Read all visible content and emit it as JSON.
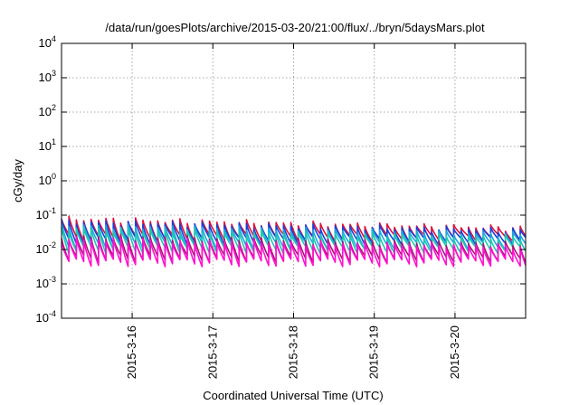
{
  "chart_data": {
    "type": "line",
    "title": "/data/run/goesPlots/archive/2015-03-20/21:00/flux/../bryn/5daysMars.plot",
    "xlabel": "Coordinated Universal Time (UTC)",
    "ylabel": "cGy/day",
    "yscale": "log",
    "ylim": [
      0.0001,
      10000
    ],
    "xlim": [
      "2015-03-15 03:00",
      "2015-03-20 21:00"
    ],
    "y_ticks": [
      {
        "base": "10",
        "exp": "-4"
      },
      {
        "base": "10",
        "exp": "-3"
      },
      {
        "base": "10",
        "exp": "-2"
      },
      {
        "base": "10",
        "exp": "-1"
      },
      {
        "base": "10",
        "exp": "0"
      },
      {
        "base": "10",
        "exp": "1"
      },
      {
        "base": "10",
        "exp": "2"
      },
      {
        "base": "10",
        "exp": "3"
      },
      {
        "base": "10",
        "exp": "4"
      }
    ],
    "x_ticks": [
      "2015-3-16",
      "2015-3-17",
      "2015-3-18",
      "2015-3-19",
      "2015-3-20"
    ],
    "grid": true,
    "sawtooth_period_hours": 2.2,
    "series": [
      {
        "color": "#e0103a",
        "peak_start": 0.078,
        "peak_end": 0.042,
        "trough": 0.022
      },
      {
        "color": "#1c3fd8",
        "peak_start": 0.065,
        "peak_end": 0.036,
        "trough": 0.018
      },
      {
        "color": "#18a8e0",
        "peak_start": 0.05,
        "peak_end": 0.028,
        "trough": 0.013
      },
      {
        "color": "#20c8b0",
        "peak_start": 0.042,
        "peak_end": 0.022,
        "trough": 0.01
      },
      {
        "color": "#a01870",
        "peak_start": 0.024,
        "peak_end": 0.014,
        "trough": 0.0055
      },
      {
        "color": "#ff10d0",
        "peak_start": 0.02,
        "peak_end": 0.012,
        "trough": 0.0042
      }
    ]
  }
}
